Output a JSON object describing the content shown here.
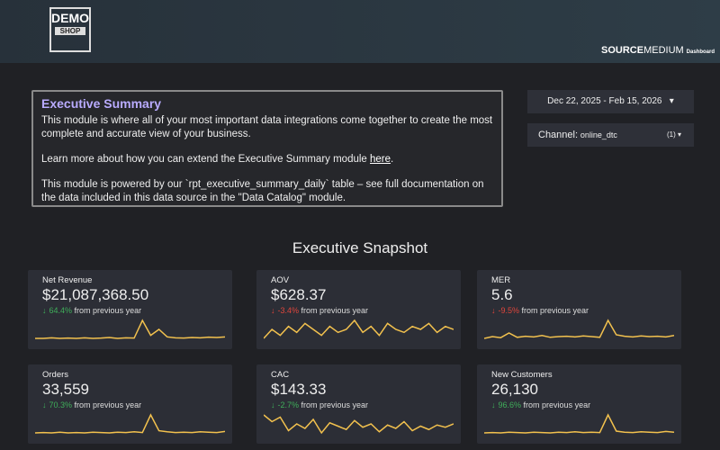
{
  "header": {
    "logo_top": "DEMO",
    "logo_bottom": "SHOP",
    "brand_source": "SOURCE",
    "brand_medium": "MEDIUM",
    "brand_suffix": "Dashboard"
  },
  "summary": {
    "title": "Executive Summary",
    "paragraph_1": "This module is where all of your most important data integrations come together to create the most complete and accurate view of your business.",
    "paragraph_2_before": "Learn more about how you can extend the Executive Summary module ",
    "paragraph_2_link": "here",
    "paragraph_2_after": ".",
    "paragraph_3": "This module is powered by our `rpt_executive_summary_daily` table – see full documentation on the data included in this data source in the \"Data Catalog\" module."
  },
  "filters": {
    "date_range": "Dec 22, 2025 - Feb 15, 2026",
    "channel_label": "Channel:",
    "channel_value": "online_dtc",
    "channel_count": "(1)"
  },
  "snapshot": {
    "title": "Executive Snapshot",
    "comparison_text": "from previous year",
    "cards": [
      {
        "label": "Net Revenue",
        "value": "$21,087,368.50",
        "change": "64.4%",
        "positive": true,
        "spark": [
          3,
          3,
          3.2,
          3,
          3.1,
          3,
          3.2,
          3,
          3.1,
          3.3,
          3,
          3.2,
          3.1,
          9,
          4,
          6,
          3.5,
          3.2,
          3.1,
          3.3,
          3.2,
          3.4,
          3.3,
          3.5
        ]
      },
      {
        "label": "AOV",
        "value": "$628.37",
        "change": "-3.4%",
        "positive": false,
        "spark": [
          5,
          5.3,
          5.1,
          5.4,
          5.2,
          5.5,
          5.3,
          5.1,
          5.4,
          5.2,
          5.3,
          5.6,
          5.2,
          5.4,
          5.1,
          5.5,
          5.3,
          5.2,
          5.4,
          5.3,
          5.5,
          5.2,
          5.4,
          5.3
        ]
      },
      {
        "label": "MER",
        "value": "5.6",
        "change": "-9.5%",
        "positive": false,
        "spark": [
          4,
          4.5,
          4.2,
          5.5,
          4.3,
          4.6,
          4.4,
          4.8,
          4.3,
          4.5,
          4.6,
          4.4,
          4.7,
          4.5,
          4.3,
          9,
          5,
          4.6,
          4.4,
          4.7,
          4.5,
          4.6,
          4.4,
          4.8
        ]
      },
      {
        "label": "Orders",
        "value": "33,559",
        "change": "70.3%",
        "positive": true,
        "spark": [
          3,
          3.1,
          3,
          3.2,
          3,
          3.1,
          3,
          3.2,
          3.1,
          3,
          3.2,
          3.1,
          3.3,
          3.1,
          8,
          3.6,
          3.3,
          3.1,
          3.2,
          3.1,
          3.3,
          3.2,
          3.1,
          3.4
        ]
      },
      {
        "label": "CAC",
        "value": "$143.33",
        "change": "-2.7%",
        "positive": true,
        "spark": [
          7,
          6.4,
          6.8,
          5.6,
          6.2,
          5.8,
          6.6,
          5.4,
          6.3,
          6,
          5.7,
          6.5,
          5.9,
          6.2,
          5.5,
          6.1,
          5.8,
          6.4,
          5.6,
          6,
          5.7,
          6.1,
          5.9,
          6.2
        ]
      },
      {
        "label": "New Customers",
        "value": "26,130",
        "change": "96.6%",
        "positive": true,
        "spark": [
          3,
          3.1,
          3,
          3.2,
          3.1,
          3,
          3.2,
          3.1,
          3,
          3.2,
          3.1,
          3.3,
          3.1,
          3.2,
          3.1,
          8,
          3.5,
          3.2,
          3.1,
          3.3,
          3.2,
          3.1,
          3.4,
          3.2
        ]
      }
    ]
  }
}
